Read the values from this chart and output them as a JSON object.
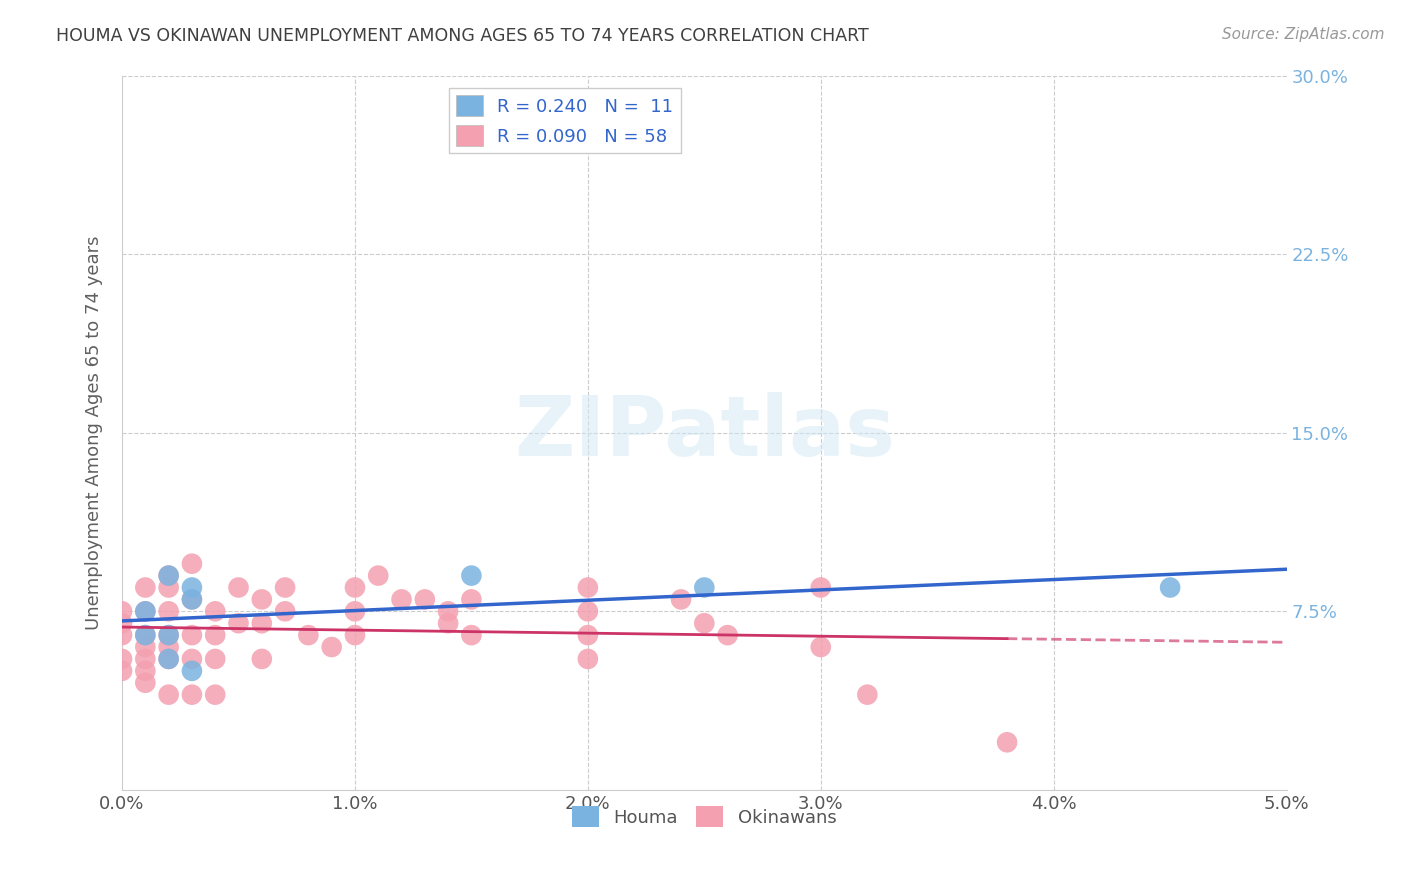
{
  "title": "HOUMA VS OKINAWAN UNEMPLOYMENT AMONG AGES 65 TO 74 YEARS CORRELATION CHART",
  "source": "Source: ZipAtlas.com",
  "ylabel": "Unemployment Among Ages 65 to 74 years",
  "xlim": [
    0.0,
    0.05
  ],
  "ylim": [
    0.0,
    0.3
  ],
  "xticks": [
    0.0,
    0.01,
    0.02,
    0.03,
    0.04,
    0.05
  ],
  "yticks": [
    0.0,
    0.075,
    0.15,
    0.225,
    0.3
  ],
  "xtick_labels": [
    "0.0%",
    "1.0%",
    "2.0%",
    "3.0%",
    "4.0%",
    "5.0%"
  ],
  "ytick_labels": [
    "",
    "7.5%",
    "15.0%",
    "22.5%",
    "30.0%"
  ],
  "houma_color": "#7ab3e0",
  "okinawan_color": "#f4a0b0",
  "houma_line_color": "#3366cc",
  "okinawan_line_color": "#cc3366",
  "houma_R": 0.24,
  "houma_N": 11,
  "okinawan_R": 0.09,
  "okinawan_N": 58,
  "legend_labels": [
    "Houma",
    "Okinawans"
  ],
  "watermark": "ZIPatlas",
  "houma_scatter_x": [
    0.001,
    0.001,
    0.002,
    0.002,
    0.002,
    0.003,
    0.003,
    0.003,
    0.015,
    0.025,
    0.045
  ],
  "houma_scatter_y": [
    0.075,
    0.065,
    0.09,
    0.065,
    0.055,
    0.085,
    0.08,
    0.05,
    0.09,
    0.085,
    0.085
  ],
  "okinawan_scatter_x": [
    0.0,
    0.0,
    0.0,
    0.0,
    0.0,
    0.001,
    0.001,
    0.001,
    0.001,
    0.001,
    0.001,
    0.001,
    0.002,
    0.002,
    0.002,
    0.002,
    0.002,
    0.002,
    0.002,
    0.003,
    0.003,
    0.003,
    0.003,
    0.003,
    0.004,
    0.004,
    0.004,
    0.004,
    0.005,
    0.005,
    0.006,
    0.006,
    0.006,
    0.007,
    0.007,
    0.008,
    0.009,
    0.01,
    0.01,
    0.01,
    0.011,
    0.012,
    0.013,
    0.014,
    0.014,
    0.015,
    0.015,
    0.02,
    0.02,
    0.02,
    0.02,
    0.024,
    0.025,
    0.026,
    0.03,
    0.03,
    0.032,
    0.038
  ],
  "okinawan_scatter_y": [
    0.065,
    0.07,
    0.075,
    0.055,
    0.05,
    0.085,
    0.075,
    0.065,
    0.06,
    0.055,
    0.05,
    0.045,
    0.09,
    0.085,
    0.075,
    0.065,
    0.06,
    0.055,
    0.04,
    0.095,
    0.08,
    0.065,
    0.055,
    0.04,
    0.075,
    0.065,
    0.055,
    0.04,
    0.085,
    0.07,
    0.08,
    0.07,
    0.055,
    0.085,
    0.075,
    0.065,
    0.06,
    0.085,
    0.075,
    0.065,
    0.09,
    0.08,
    0.08,
    0.075,
    0.07,
    0.08,
    0.065,
    0.085,
    0.075,
    0.065,
    0.055,
    0.08,
    0.07,
    0.065,
    0.085,
    0.06,
    0.04,
    0.02
  ],
  "background_color": "#ffffff",
  "grid_color": "#cccccc",
  "title_color": "#404040",
  "axis_label_color": "#606060",
  "tick_color_right": "#7ab3e0"
}
